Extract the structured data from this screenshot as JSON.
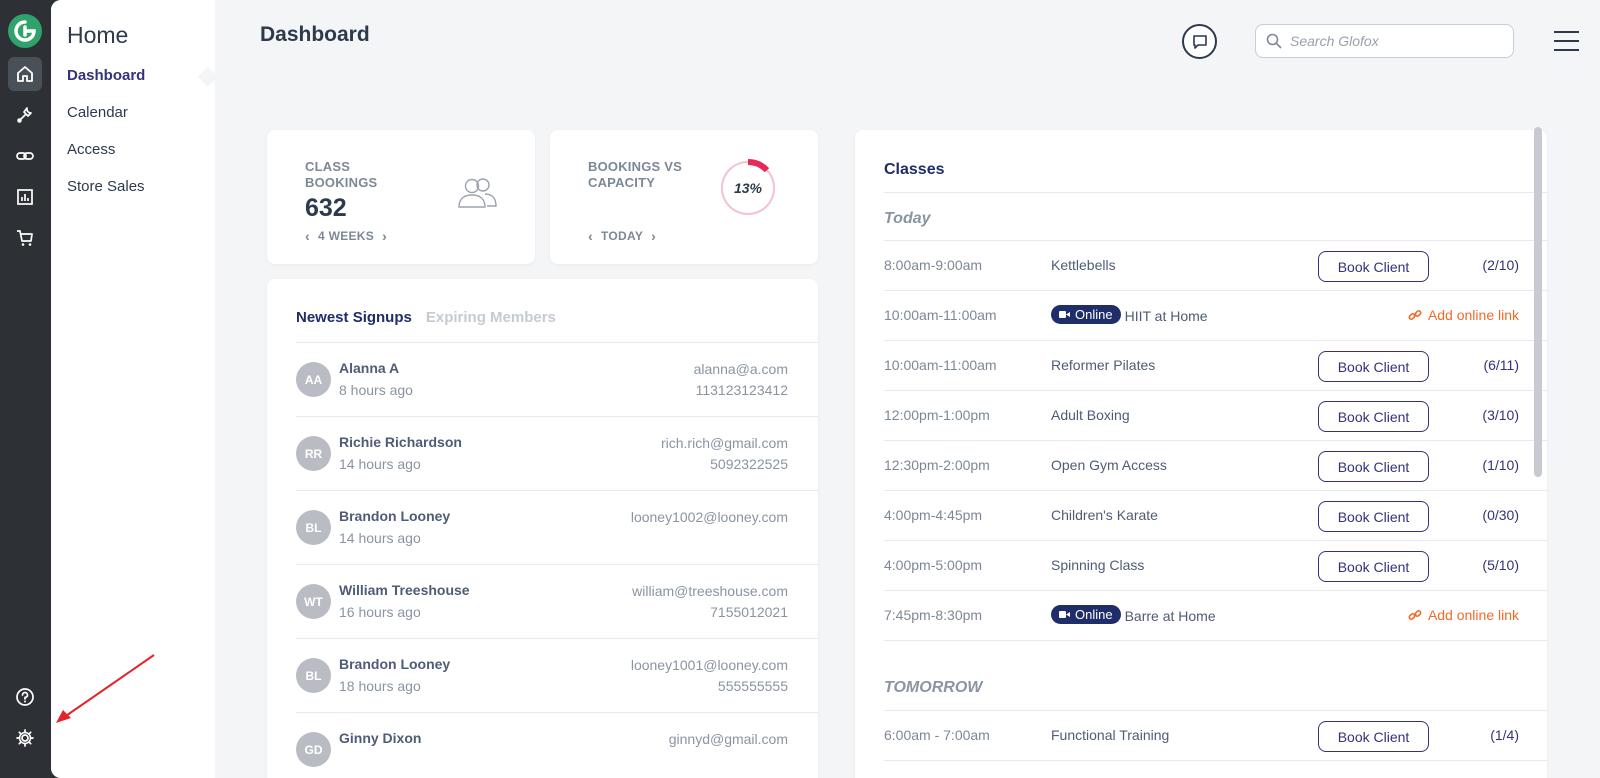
{
  "sidebar_icons": [
    "glofox-logo-icon",
    "home-icon",
    "wrench-icon",
    "link-icon",
    "bar-chart-icon",
    "cart-icon",
    "help-icon",
    "gear-icon"
  ],
  "subnav": {
    "title": "Home",
    "items": [
      {
        "label": "Dashboard",
        "active": true
      },
      {
        "label": "Calendar",
        "active": false
      },
      {
        "label": "Access",
        "active": false
      },
      {
        "label": "Store Sales",
        "active": false
      }
    ]
  },
  "header": {
    "title": "Dashboard",
    "search_placeholder": "Search Glofox"
  },
  "stats": {
    "bookings": {
      "label_line1": "CLASS",
      "label_line2": "BOOKINGS",
      "value": "632",
      "period": "4 WEEKS"
    },
    "capacity": {
      "label_line1": "BOOKINGS VS",
      "label_line2": "CAPACITY",
      "percent_text": "13%",
      "percent_value": 0.13,
      "period": "TODAY"
    }
  },
  "signups": {
    "tab_active": "Newest Signups",
    "tab_inactive": "Expiring Members",
    "rows": [
      {
        "initials": "AA",
        "name": "Alanna A",
        "time": "8 hours ago",
        "email": "alanna@a.com",
        "phone": "113123123412"
      },
      {
        "initials": "RR",
        "name": "Richie Richardson",
        "time": "14 hours ago",
        "email": "rich.rich@gmail.com",
        "phone": "5092322525"
      },
      {
        "initials": "BL",
        "name": "Brandon Looney",
        "time": "14 hours ago",
        "email": "looney1002@looney.com",
        "phone": ""
      },
      {
        "initials": "WT",
        "name": "William Treeshouse",
        "time": "16 hours ago",
        "email": "william@treeshouse.com",
        "phone": "7155012021"
      },
      {
        "initials": "BL",
        "name": "Brandon Looney",
        "time": "18 hours ago",
        "email": "looney1001@looney.com",
        "phone": "555555555"
      },
      {
        "initials": "GD",
        "name": "Ginny Dixon",
        "time": "",
        "email": "ginnyd@gmail.com",
        "phone": ""
      }
    ]
  },
  "classes": {
    "title": "Classes",
    "today_label": "Today",
    "tomorrow_label": "TOMORROW",
    "book_label": "Book Client",
    "online_label": "Online",
    "add_link_label": "Add online link",
    "today": [
      {
        "time": "8:00am-9:00am",
        "name": "Kettlebells",
        "online": false,
        "capacity": "(2/10)"
      },
      {
        "time": "10:00am-11:00am",
        "name": "HIIT at Home",
        "online": true,
        "capacity": ""
      },
      {
        "time": "10:00am-11:00am",
        "name": "Reformer Pilates",
        "online": false,
        "capacity": "(6/11)"
      },
      {
        "time": "12:00pm-1:00pm",
        "name": "Adult Boxing",
        "online": false,
        "capacity": "(3/10)"
      },
      {
        "time": "12:30pm-2:00pm",
        "name": "Open Gym Access",
        "online": false,
        "capacity": "(1/10)"
      },
      {
        "time": "4:00pm-4:45pm",
        "name": "Children's Karate",
        "online": false,
        "capacity": "(0/30)"
      },
      {
        "time": "4:00pm-5:00pm",
        "name": "Spinning Class",
        "online": false,
        "capacity": "(5/10)"
      },
      {
        "time": "7:45pm-8:30pm",
        "name": "Barre at Home",
        "online": true,
        "capacity": ""
      }
    ],
    "tomorrow": [
      {
        "time": "6:00am - 7:00am",
        "name": "Functional Training",
        "online": false,
        "capacity": "(1/4)"
      }
    ]
  },
  "colors": {
    "accent": "#34327a",
    "navy": "#1f2d6a",
    "link_orange": "#f06a2a",
    "donut_pink": "#e8285a",
    "arrow_red": "#e3242b"
  }
}
